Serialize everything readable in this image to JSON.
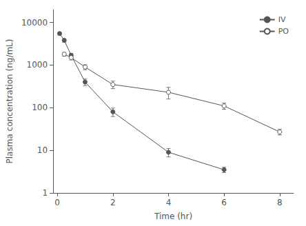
{
  "chart_data": {
    "type": "line",
    "xlabel": "Time (hr)",
    "ylabel": "Plasma concentration (ng/mL)",
    "series": [
      {
        "name": "IV",
        "x": [
          0.083,
          0.25,
          0.5,
          1.0,
          2.0,
          4.0,
          6.0
        ],
        "values": [
          5500,
          3800,
          1700,
          400,
          80,
          9,
          3.5
        ],
        "error": [
          400,
          350,
          180,
          70,
          18,
          2.0,
          0.5
        ],
        "color": "#555555",
        "marker": "circle"
      },
      {
        "name": "PO",
        "x": [
          0.25,
          0.5,
          1.0,
          2.0,
          4.0,
          6.0,
          8.0
        ],
        "values": [
          1800,
          1500,
          900,
          350,
          230,
          110,
          27
        ],
        "error": [
          180,
          180,
          120,
          70,
          70,
          18,
          4
        ],
        "color": "#555555",
        "marker": "open_circle"
      }
    ],
    "xlim": [
      -0.15,
      8.5
    ],
    "ylim": [
      1,
      20000
    ],
    "xticks": [
      0,
      2,
      4,
      6,
      8
    ],
    "yticks": [
      1,
      10,
      100,
      1000,
      10000
    ],
    "log": "y",
    "legend": "upper right",
    "grid": false
  }
}
